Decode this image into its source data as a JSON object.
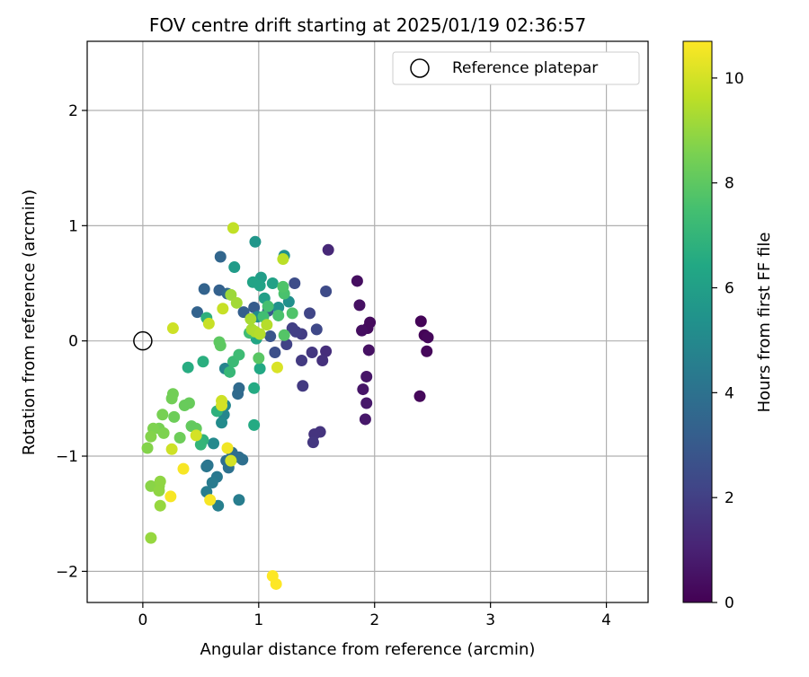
{
  "chart_data": {
    "type": "scatter",
    "title": "FOV centre drift starting at 2025/01/19 02:36:57",
    "xlabel": "Angular distance from reference (arcmin)",
    "ylabel": "Rotation from reference (arcmin)",
    "xlim": [
      -0.48,
      4.36
    ],
    "ylim": [
      -2.27,
      2.6
    ],
    "xticks": [
      0,
      1,
      2,
      3,
      4
    ],
    "xtick_labels": [
      "0",
      "1",
      "2",
      "3",
      "4"
    ],
    "yticks": [
      -2,
      -1,
      0,
      1,
      2
    ],
    "ytick_labels": [
      "−2",
      "−1",
      "0",
      "1",
      "2"
    ],
    "grid": true,
    "legend": {
      "position": "top-right",
      "entries": [
        {
          "label": "Reference platepar",
          "marker": "open-circle"
        }
      ]
    },
    "reference_point": {
      "x": 0,
      "y": 0
    },
    "colorbar": {
      "label": "Hours from first FF file",
      "colormap": "viridis",
      "range": [
        0,
        10.7
      ],
      "ticks": [
        0,
        2,
        4,
        6,
        8,
        10
      ],
      "tick_labels": [
        "0",
        "2",
        "4",
        "6",
        "8",
        "10"
      ]
    },
    "points": [
      {
        "x": 2.4,
        "y": 0.17,
        "t": 0.1
      },
      {
        "x": 2.43,
        "y": 0.05,
        "t": 0.1
      },
      {
        "x": 2.45,
        "y": -0.09,
        "t": 0.2
      },
      {
        "x": 2.46,
        "y": 0.03,
        "t": 0.2
      },
      {
        "x": 2.39,
        "y": -0.48,
        "t": 0.2
      },
      {
        "x": 1.96,
        "y": 0.16,
        "t": 0.3
      },
      {
        "x": 1.94,
        "y": 0.11,
        "t": 0.3
      },
      {
        "x": 1.89,
        "y": 0.09,
        "t": 0.4
      },
      {
        "x": 1.85,
        "y": 0.52,
        "t": 0.4
      },
      {
        "x": 1.87,
        "y": 0.31,
        "t": 0.5
      },
      {
        "x": 1.95,
        "y": -0.08,
        "t": 0.5
      },
      {
        "x": 1.93,
        "y": -0.31,
        "t": 0.6
      },
      {
        "x": 1.9,
        "y": -0.42,
        "t": 0.6
      },
      {
        "x": 1.93,
        "y": -0.54,
        "t": 0.7
      },
      {
        "x": 1.92,
        "y": -0.68,
        "t": 0.7
      },
      {
        "x": 1.6,
        "y": 0.79,
        "t": 1.2
      },
      {
        "x": 1.58,
        "y": -0.09,
        "t": 1.4
      },
      {
        "x": 1.55,
        "y": -0.17,
        "t": 1.5
      },
      {
        "x": 1.53,
        "y": -0.79,
        "t": 1.6
      },
      {
        "x": 1.48,
        "y": -0.81,
        "t": 1.6
      },
      {
        "x": 1.47,
        "y": -0.88,
        "t": 1.7
      },
      {
        "x": 1.46,
        "y": -0.1,
        "t": 1.7
      },
      {
        "x": 1.37,
        "y": -0.17,
        "t": 1.8
      },
      {
        "x": 1.38,
        "y": -0.39,
        "t": 1.8
      },
      {
        "x": 1.37,
        "y": 0.06,
        "t": 1.9
      },
      {
        "x": 1.32,
        "y": 0.08,
        "t": 2.0
      },
      {
        "x": 1.29,
        "y": 0.11,
        "t": 2.0
      },
      {
        "x": 1.24,
        "y": -0.03,
        "t": 2.1
      },
      {
        "x": 1.44,
        "y": 0.24,
        "t": 2.2
      },
      {
        "x": 1.5,
        "y": 0.1,
        "t": 2.3
      },
      {
        "x": 1.58,
        "y": 0.43,
        "t": 2.4
      },
      {
        "x": 1.31,
        "y": 0.5,
        "t": 2.5
      },
      {
        "x": 1.14,
        "y": -0.1,
        "t": 2.6
      },
      {
        "x": 1.1,
        "y": 0.04,
        "t": 2.8
      },
      {
        "x": 1.08,
        "y": 0.26,
        "t": 3.0
      },
      {
        "x": 0.96,
        "y": 0.29,
        "t": 3.1
      },
      {
        "x": 0.87,
        "y": 0.25,
        "t": 3.2
      },
      {
        "x": 0.66,
        "y": 0.44,
        "t": 3.3
      },
      {
        "x": 0.53,
        "y": 0.45,
        "t": 3.4
      },
      {
        "x": 0.47,
        "y": 0.25,
        "t": 3.4
      },
      {
        "x": 0.67,
        "y": 0.73,
        "t": 3.5
      },
      {
        "x": 0.73,
        "y": 0.41,
        "t": 3.6
      },
      {
        "x": 0.82,
        "y": -0.46,
        "t": 3.7
      },
      {
        "x": 0.83,
        "y": -0.41,
        "t": 3.7
      },
      {
        "x": 0.77,
        "y": -0.97,
        "t": 3.8
      },
      {
        "x": 0.83,
        "y": -1.01,
        "t": 3.8
      },
      {
        "x": 0.86,
        "y": -1.03,
        "t": 3.9
      },
      {
        "x": 0.72,
        "y": -1.04,
        "t": 3.9
      },
      {
        "x": 0.74,
        "y": -1.1,
        "t": 4.0
      },
      {
        "x": 0.56,
        "y": -1.08,
        "t": 4.1
      },
      {
        "x": 0.55,
        "y": -1.09,
        "t": 4.2
      },
      {
        "x": 0.64,
        "y": -1.18,
        "t": 4.3
      },
      {
        "x": 0.6,
        "y": -1.23,
        "t": 4.4
      },
      {
        "x": 0.55,
        "y": -1.31,
        "t": 4.5
      },
      {
        "x": 0.83,
        "y": -1.38,
        "t": 4.5
      },
      {
        "x": 0.65,
        "y": -1.43,
        "t": 4.6
      },
      {
        "x": 0.71,
        "y": -0.24,
        "t": 4.8
      },
      {
        "x": 0.71,
        "y": -0.56,
        "t": 4.9
      },
      {
        "x": 0.7,
        "y": -0.64,
        "t": 4.9
      },
      {
        "x": 0.61,
        "y": -0.89,
        "t": 5.0
      },
      {
        "x": 0.68,
        "y": -0.71,
        "t": 5.1
      },
      {
        "x": 0.99,
        "y": 0.21,
        "t": 5.2
      },
      {
        "x": 1.26,
        "y": 0.34,
        "t": 5.3
      },
      {
        "x": 1.17,
        "y": 0.29,
        "t": 5.4
      },
      {
        "x": 1.22,
        "y": 0.74,
        "t": 5.4
      },
      {
        "x": 0.97,
        "y": 0.86,
        "t": 5.6
      },
      {
        "x": 0.79,
        "y": 0.64,
        "t": 5.8
      },
      {
        "x": 1.02,
        "y": 0.55,
        "t": 5.9
      },
      {
        "x": 1.05,
        "y": 0.37,
        "t": 6.0
      },
      {
        "x": 1.12,
        "y": 0.5,
        "t": 6.1
      },
      {
        "x": 0.95,
        "y": 0.51,
        "t": 6.2
      },
      {
        "x": 1.01,
        "y": 0.48,
        "t": 6.2
      },
      {
        "x": 0.98,
        "y": 0.02,
        "t": 6.3
      },
      {
        "x": 1.01,
        "y": -0.24,
        "t": 6.4
      },
      {
        "x": 0.96,
        "y": -0.41,
        "t": 6.5
      },
      {
        "x": 0.96,
        "y": -0.73,
        "t": 6.5
      },
      {
        "x": 0.39,
        "y": -0.23,
        "t": 6.6
      },
      {
        "x": 0.52,
        "y": -0.18,
        "t": 6.7
      },
      {
        "x": 0.55,
        "y": 0.2,
        "t": 6.8
      },
      {
        "x": 0.64,
        "y": -0.61,
        "t": 6.8
      },
      {
        "x": 0.52,
        "y": -0.86,
        "t": 6.9
      },
      {
        "x": 0.5,
        "y": -0.9,
        "t": 7.0
      },
      {
        "x": 0.75,
        "y": -0.27,
        "t": 7.1
      },
      {
        "x": 0.78,
        "y": -0.18,
        "t": 7.2
      },
      {
        "x": 0.83,
        "y": -0.12,
        "t": 7.3
      },
      {
        "x": 0.92,
        "y": 0.07,
        "t": 7.3
      },
      {
        "x": 1.04,
        "y": 0.21,
        "t": 7.4
      },
      {
        "x": 1.08,
        "y": 0.3,
        "t": 7.5
      },
      {
        "x": 1.17,
        "y": 0.22,
        "t": 7.6
      },
      {
        "x": 1.22,
        "y": 0.41,
        "t": 7.6
      },
      {
        "x": 1.21,
        "y": 0.47,
        "t": 7.7
      },
      {
        "x": 1.29,
        "y": 0.24,
        "t": 7.7
      },
      {
        "x": 1.22,
        "y": 0.05,
        "t": 7.8
      },
      {
        "x": 1.0,
        "y": -0.15,
        "t": 7.9
      },
      {
        "x": 0.66,
        "y": -0.01,
        "t": 8.0
      },
      {
        "x": 0.67,
        "y": -0.04,
        "t": 8.0
      },
      {
        "x": 0.42,
        "y": -0.74,
        "t": 8.1
      },
      {
        "x": 0.46,
        "y": -0.76,
        "t": 8.1
      },
      {
        "x": 0.4,
        "y": -0.54,
        "t": 8.2
      },
      {
        "x": 0.36,
        "y": -0.56,
        "t": 8.2
      },
      {
        "x": 0.32,
        "y": -0.84,
        "t": 8.3
      },
      {
        "x": 0.27,
        "y": -0.66,
        "t": 8.3
      },
      {
        "x": 0.25,
        "y": -0.5,
        "t": 8.4
      },
      {
        "x": 0.26,
        "y": -0.46,
        "t": 8.4
      },
      {
        "x": 0.17,
        "y": -0.64,
        "t": 8.5
      },
      {
        "x": 0.14,
        "y": -0.76,
        "t": 8.5
      },
      {
        "x": 0.18,
        "y": -0.8,
        "t": 8.6
      },
      {
        "x": 0.09,
        "y": -0.76,
        "t": 8.6
      },
      {
        "x": 0.07,
        "y": -0.83,
        "t": 8.7
      },
      {
        "x": 0.04,
        "y": -0.93,
        "t": 8.7
      },
      {
        "x": 0.07,
        "y": -1.26,
        "t": 8.8
      },
      {
        "x": 0.14,
        "y": -1.26,
        "t": 8.8
      },
      {
        "x": 0.15,
        "y": -1.22,
        "t": 8.9
      },
      {
        "x": 0.14,
        "y": -1.3,
        "t": 8.9
      },
      {
        "x": 0.15,
        "y": -1.43,
        "t": 9.0
      },
      {
        "x": 0.07,
        "y": -1.71,
        "t": 9.0
      },
      {
        "x": 0.76,
        "y": 0.4,
        "t": 9.1
      },
      {
        "x": 0.81,
        "y": 0.33,
        "t": 9.2
      },
      {
        "x": 0.93,
        "y": 0.19,
        "t": 9.3
      },
      {
        "x": 0.94,
        "y": 0.1,
        "t": 9.3
      },
      {
        "x": 0.97,
        "y": 0.08,
        "t": 9.4
      },
      {
        "x": 1.01,
        "y": 0.06,
        "t": 9.5
      },
      {
        "x": 1.07,
        "y": 0.14,
        "t": 9.5
      },
      {
        "x": 1.21,
        "y": 0.71,
        "t": 9.6
      },
      {
        "x": 0.78,
        "y": 0.98,
        "t": 9.7
      },
      {
        "x": 0.69,
        "y": 0.28,
        "t": 9.8
      },
      {
        "x": 0.57,
        "y": 0.15,
        "t": 9.8
      },
      {
        "x": 0.26,
        "y": 0.11,
        "t": 9.9
      },
      {
        "x": 0.25,
        "y": -0.94,
        "t": 9.9
      },
      {
        "x": 0.68,
        "y": -0.52,
        "t": 9.9
      },
      {
        "x": 0.68,
        "y": -0.56,
        "t": 10.0
      },
      {
        "x": 0.46,
        "y": -0.82,
        "t": 10.0
      },
      {
        "x": 0.76,
        "y": -1.04,
        "t": 10.0
      },
      {
        "x": 1.16,
        "y": -0.23,
        "t": 10.1
      },
      {
        "x": 0.73,
        "y": -0.93,
        "t": 10.5
      },
      {
        "x": 0.35,
        "y": -1.11,
        "t": 10.6
      },
      {
        "x": 0.24,
        "y": -1.35,
        "t": 10.6
      },
      {
        "x": 0.58,
        "y": -1.38,
        "t": 10.6
      },
      {
        "x": 1.12,
        "y": -2.04,
        "t": 10.7
      },
      {
        "x": 1.15,
        "y": -2.11,
        "t": 10.7
      }
    ]
  }
}
